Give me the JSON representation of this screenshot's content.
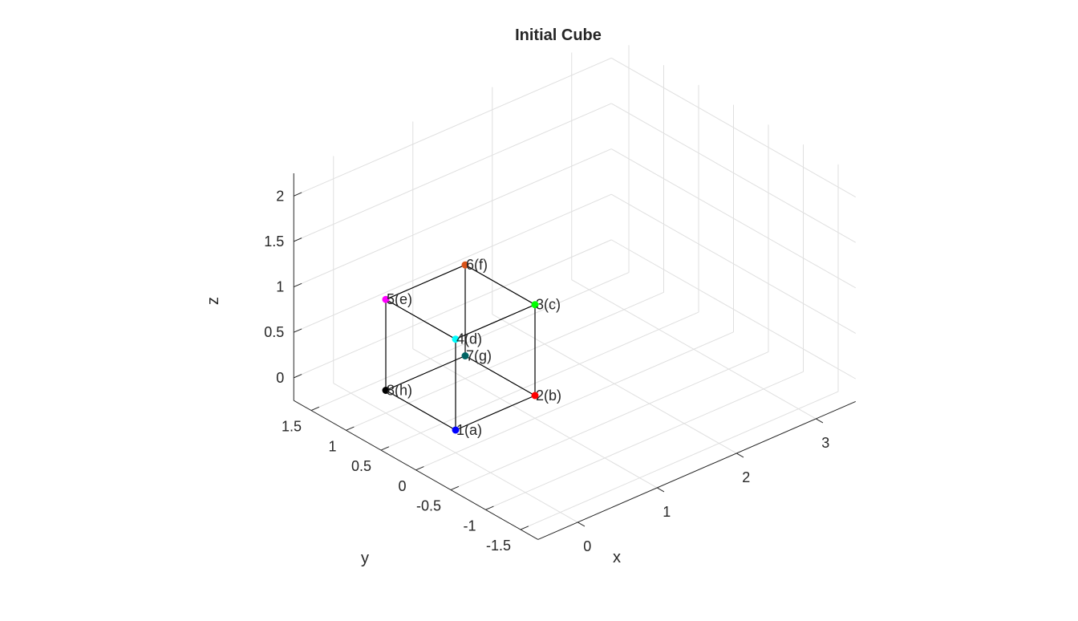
{
  "chart_data": {
    "type": "scatter3d",
    "title": "Initial Cube",
    "xlabel": "x",
    "ylabel": "y",
    "zlabel": "z",
    "xlim": [
      -0.5,
      3.5
    ],
    "ylim": [
      -1.75,
      1.75
    ],
    "zlim": [
      -0.25,
      2.25
    ],
    "xticks": [
      0,
      1,
      2,
      3
    ],
    "yticks": [
      -1.5,
      -1,
      -0.5,
      0,
      0.5,
      1,
      1.5
    ],
    "zticks": [
      0,
      0.5,
      1,
      1.5,
      2
    ],
    "xtick_labels": [
      "0",
      "1",
      "2",
      "3"
    ],
    "ytick_labels": [
      "-1.5",
      "-1",
      "-0.5",
      "0",
      "0.5",
      "1",
      "1.5"
    ],
    "ztick_labels": [
      "0",
      "0.5",
      "1",
      "1.5",
      "2"
    ],
    "grid": true,
    "points": [
      {
        "label": "1(a)",
        "x": 0,
        "y": 0,
        "z": 0,
        "color": "#0000ff"
      },
      {
        "label": "2(b)",
        "x": 1,
        "y": 0,
        "z": 0,
        "color": "#ff0000"
      },
      {
        "label": "3(c)",
        "x": 1,
        "y": 0,
        "z": 1,
        "color": "#00ff00"
      },
      {
        "label": "4(d)",
        "x": 0,
        "y": 0,
        "z": 1,
        "color": "#00ffff"
      },
      {
        "label": "5(e)",
        "x": 0,
        "y": 1,
        "z": 1,
        "color": "#ff00ff"
      },
      {
        "label": "6(f)",
        "x": 1,
        "y": 1,
        "z": 1,
        "color": "#d95319"
      },
      {
        "label": "7(g)",
        "x": 1,
        "y": 1,
        "z": 0,
        "color": "#006464"
      },
      {
        "label": "8(h)",
        "x": 0,
        "y": 1,
        "z": 0,
        "color": "#000000"
      }
    ],
    "edges": [
      [
        0,
        1
      ],
      [
        1,
        2
      ],
      [
        2,
        3
      ],
      [
        3,
        0
      ],
      [
        4,
        5
      ],
      [
        5,
        6
      ],
      [
        6,
        7
      ],
      [
        7,
        4
      ],
      [
        0,
        7
      ],
      [
        1,
        6
      ],
      [
        2,
        5
      ],
      [
        3,
        4
      ]
    ]
  }
}
